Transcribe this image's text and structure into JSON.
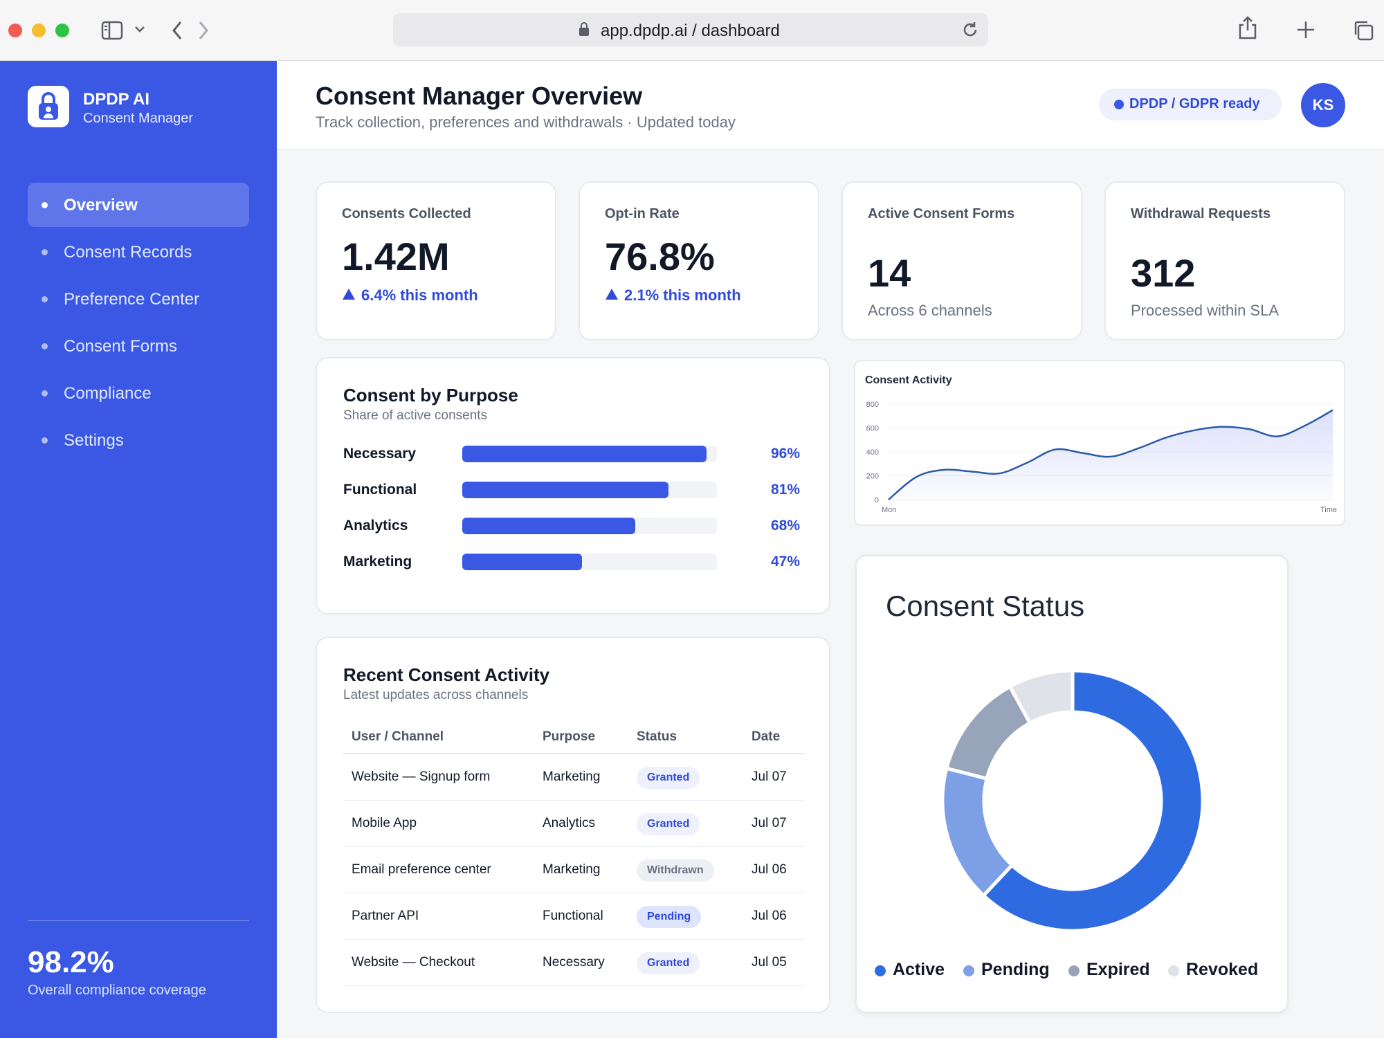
{
  "browser": {
    "url": "app.dpdp.ai / dashboard"
  },
  "sidebar": {
    "brand_title": "DPDP AI",
    "brand_subtitle": "Consent Manager",
    "items": [
      {
        "label": "Overview",
        "active": true
      },
      {
        "label": "Consent Records",
        "active": false
      },
      {
        "label": "Preference Center",
        "active": false
      },
      {
        "label": "Consent Forms",
        "active": false
      },
      {
        "label": "Compliance",
        "active": false
      },
      {
        "label": "Settings",
        "active": false
      }
    ],
    "compliance_value": "98.2%",
    "compliance_label": "Overall compliance coverage"
  },
  "header": {
    "title": "Consent Manager Overview",
    "subtitle": "Track collection, preferences and withdrawals · Updated today",
    "badge": "DPDP / GDPR ready",
    "avatar": "KS"
  },
  "stats": [
    {
      "label": "Consents Collected",
      "value": "1.42M",
      "trend": "6.4% this month"
    },
    {
      "label": "Opt-in Rate",
      "value": "76.8%",
      "trend": "2.1% this month"
    },
    {
      "label": "Active Consent Forms",
      "value": "14",
      "note": "Across 6 channels"
    },
    {
      "label": "Withdrawal Requests",
      "value": "312",
      "note": "Processed within SLA"
    }
  ],
  "purpose": {
    "title": "Consent by Purpose",
    "subtitle": "Share of active consents",
    "rows": [
      {
        "label": "Necessary",
        "pct_text": "96%",
        "value": 96
      },
      {
        "label": "Functional",
        "pct_text": "81%",
        "value": 81
      },
      {
        "label": "Analytics",
        "pct_text": "68%",
        "value": 68
      },
      {
        "label": "Marketing",
        "pct_text": "47%",
        "value": 47
      }
    ]
  },
  "activity": {
    "title": "Recent Consent Activity",
    "subtitle": "Latest updates across channels",
    "columns": [
      "User / Channel",
      "Purpose",
      "Status",
      "Date"
    ],
    "rows": [
      {
        "channel": "Website — Signup form",
        "purpose": "Marketing",
        "status": "Granted",
        "status_kind": "granted",
        "date": "Jul 07"
      },
      {
        "channel": "Mobile App",
        "purpose": "Analytics",
        "status": "Granted",
        "status_kind": "granted",
        "date": "Jul 07"
      },
      {
        "channel": "Email preference center",
        "purpose": "Marketing",
        "status": "Withdrawn",
        "status_kind": "withdrawn",
        "date": "Jul 06"
      },
      {
        "channel": "Partner API",
        "purpose": "Functional",
        "status": "Pending",
        "status_kind": "pending",
        "date": "Jul 06"
      },
      {
        "channel": "Website — Checkout",
        "purpose": "Necessary",
        "status": "Granted",
        "status_kind": "granted",
        "date": "Jul 05"
      }
    ]
  },
  "colors": {
    "accent": "#3b58e4",
    "active": "#2f6be0",
    "pending": "#7d9fe6",
    "expired": "#98a4b9",
    "revoked": "#dfe3e9"
  },
  "chart_data": [
    {
      "type": "line",
      "title": "Consent Activity",
      "x": [
        "Mon",
        "",
        "",
        "",
        "",
        "",
        "",
        "",
        "",
        "",
        "",
        "",
        "",
        "",
        "",
        "",
        "Time"
      ],
      "x_tick_labels": [
        "Mon",
        "Time"
      ],
      "series": [
        {
          "values": [
            0,
            190,
            250,
            235,
            220,
            310,
            420,
            390,
            360,
            430,
            520,
            580,
            610,
            590,
            530,
            620,
            750
          ]
        }
      ],
      "ylim": [
        0,
        800
      ],
      "y_ticks": [
        0,
        200,
        400,
        600,
        800
      ],
      "area_fill": true,
      "grid": true
    },
    {
      "type": "pie",
      "title": "Consent Status",
      "donut": true,
      "categories": [
        "Active",
        "Pending",
        "Expired",
        "Revoked"
      ],
      "values": [
        62,
        17,
        13,
        8
      ],
      "legend": "bottom"
    }
  ]
}
